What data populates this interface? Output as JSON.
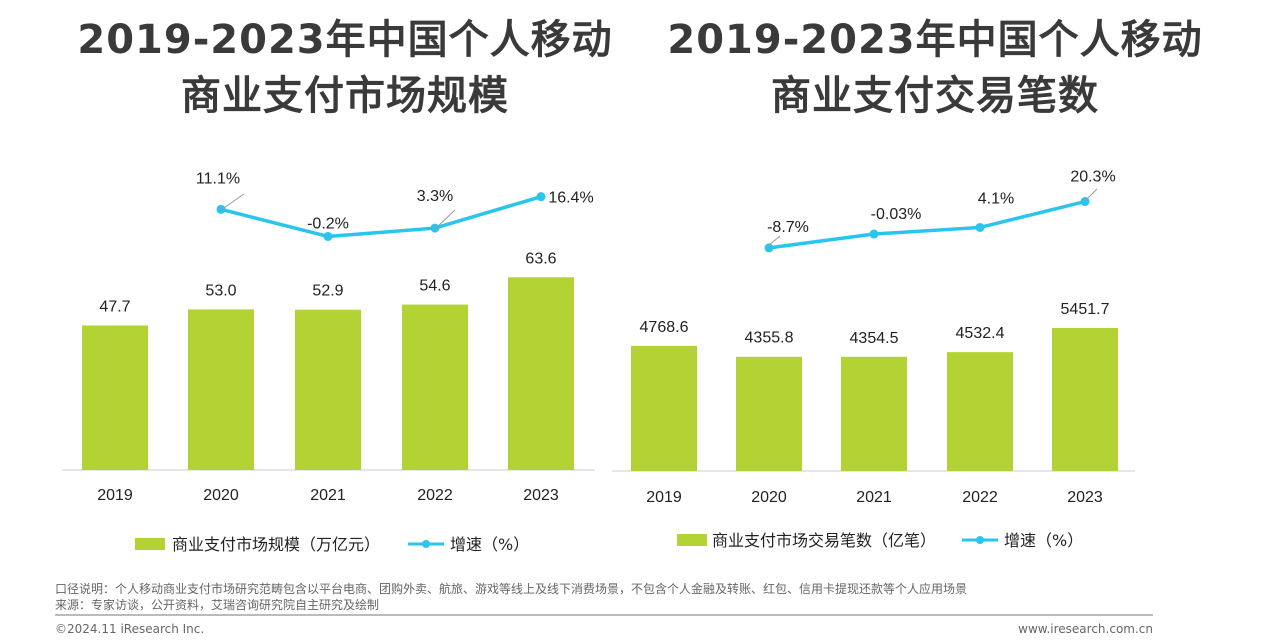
{
  "titles": {
    "left": [
      "2019-2023年中国个人移动",
      "商业支付市场规模"
    ],
    "right": [
      "2019-2023年中国个人移动",
      "商业支付交易笔数"
    ]
  },
  "colors": {
    "bar": "#b3d334",
    "line": "#29c5ef",
    "text": "#222222",
    "axis": "#cccccc"
  },
  "chart_data": [
    {
      "type": "bar",
      "categories": [
        "2019",
        "2020",
        "2021",
        "2022",
        "2023"
      ],
      "series": [
        {
          "name": "商业支付市场规模（万亿元）",
          "type": "bar",
          "values": [
            47.7,
            53.0,
            52.9,
            54.6,
            63.6
          ],
          "labels": [
            "47.7",
            "53.0",
            "52.9",
            "54.6",
            "63.6"
          ]
        },
        {
          "name": "增速（%）",
          "type": "line",
          "values": [
            null,
            11.1,
            -0.2,
            3.3,
            16.4
          ],
          "labels": [
            "",
            "11.1%",
            "-0.2%",
            "3.3%",
            "16.4%"
          ]
        }
      ],
      "legend_position": "bottom"
    },
    {
      "type": "bar",
      "categories": [
        "2019",
        "2020",
        "2021",
        "2022",
        "2023"
      ],
      "series": [
        {
          "name": "商业支付市场交易笔数（亿笔）",
          "type": "bar",
          "values": [
            4768.6,
            4355.8,
            4354.5,
            4532.4,
            5451.7
          ],
          "labels": [
            "4768.6",
            "4355.8",
            "4354.5",
            "4532.4",
            "5451.7"
          ]
        },
        {
          "name": "增速（%）",
          "type": "line",
          "values": [
            null,
            -8.7,
            -0.03,
            4.1,
            20.3
          ],
          "labels": [
            "",
            "-8.7%",
            "-0.03%",
            "4.1%",
            "20.3%"
          ]
        }
      ],
      "legend_position": "bottom"
    }
  ],
  "footer": {
    "note": "口径说明：个人移动商业支付市场研究范畴包含以平台电商、团购外卖、航旅、游戏等线上及线下消费场景，不包含个人金融及转账、红包、信用卡提现还款等个人应用场景",
    "source": "来源：专家访谈，公开资料，艾瑞咨询研究院自主研究及绘制",
    "copyright": "©2024.11 iResearch Inc.",
    "website": "www.iresearch.com.cn"
  }
}
